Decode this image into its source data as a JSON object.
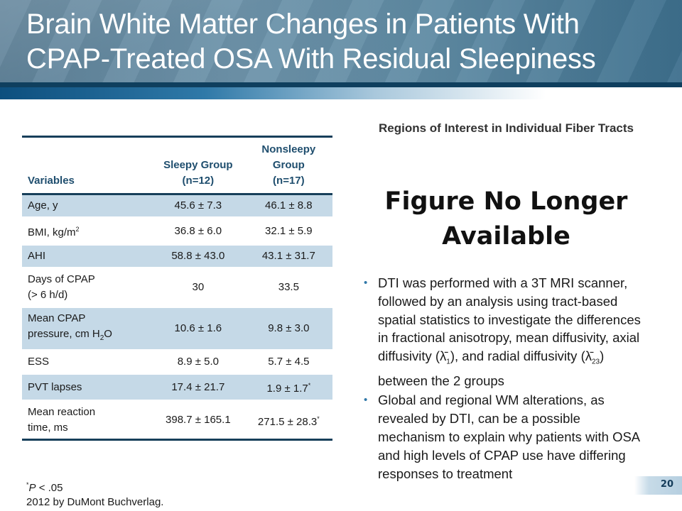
{
  "title": {
    "line1": "Brain White Matter Changes in Patients With",
    "line2": "CPAP-Treated OSA With Residual Sleepiness"
  },
  "table": {
    "headers": {
      "variables": "Variables",
      "sleepy_l1": "Sleepy Group",
      "sleepy_l2": "(n=12)",
      "nonsleepy_l1": "Nonsleepy",
      "nonsleepy_l2": "Group",
      "nonsleepy_l3": "(n=17)"
    },
    "rows": [
      {
        "label": "Age, y",
        "sleepy": "45.6 ± 7.3",
        "nonsleepy": "46.1 ± 8.8"
      },
      {
        "label": "BMI, kg/m",
        "label_sup": "2",
        "sleepy": "36.8 ± 6.0",
        "nonsleepy": "32.1 ± 5.9"
      },
      {
        "label": "AHI",
        "sleepy": "58.8 ± 43.0",
        "nonsleepy": "43.1 ± 31.7"
      },
      {
        "label": "Days of CPAP",
        "label_l2": "(> 6 h/d)",
        "sleepy": "30",
        "nonsleepy": "33.5"
      },
      {
        "label": "Mean CPAP",
        "label_l2": "pressure,  cm H",
        "label_sub": "2",
        "label_tail": "O",
        "sleepy": "10.6 ± 1.6",
        "nonsleepy": "9.8 ± 3.0"
      },
      {
        "label": "ESS",
        "sleepy": "8.9 ± 5.0",
        "nonsleepy": "5.7 ± 4.5"
      },
      {
        "label": "PVT lapses",
        "sleepy": "17.4 ± 21.7",
        "nonsleepy": "1.9 ± 1.7",
        "nonsleepy_sup": "*"
      },
      {
        "label": "Mean reaction",
        "label_l2": "time, ms",
        "sleepy": "398.7 ± 165.1",
        "nonsleepy": "271.5 ± 28.3",
        "nonsleepy_sup": "*"
      }
    ]
  },
  "footnote": {
    "sup": "*",
    "p": "P",
    "rest": " < .05",
    "credit": "2012 by DuMont Buchverlag."
  },
  "figure": {
    "subtitle": "Regions of Interest in Individual Fiber Tracts",
    "placeholder": "Figure No Longer Available"
  },
  "bullets": [
    {
      "a": "DTI was performed with a 3T MRI scanner, followed by an analysis using tract-based spatial statistics to investigate the differences in fractional anisotropy, mean diffusivity, axial diffusivity (λ̄",
      "s1": "1",
      "b": "), and radial diffusivity (λ̄",
      "s2": "23",
      "c": ") between the 2 groups"
    },
    {
      "a": "Global and regional WM alterations, as revealed by DTI, can be a possible mechanism to explain why patients with OSA and high levels of CPAP use have differing responses to treatment"
    }
  ],
  "bullet_glyph": "•",
  "page_number": "20",
  "colors": {
    "accent": "#1f4e6e",
    "row_shade": "#c5d9e7",
    "bullet": "#2f77a8"
  }
}
